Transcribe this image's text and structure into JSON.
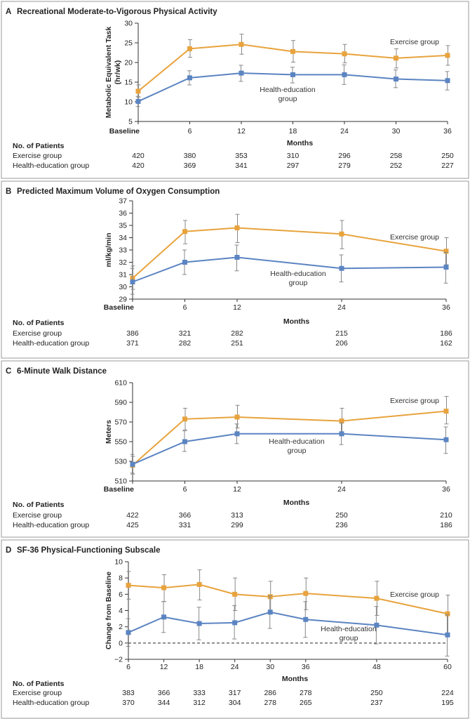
{
  "colors": {
    "exercise": "#E8A33D",
    "health": "#5B84C2",
    "errorbar": "#888888",
    "border": "#9a9a9a"
  },
  "common": {
    "xlabel": "Months",
    "patients_heading": "No. of Patients",
    "exercise_row_label": "Exercise group",
    "health_row_label": "Health-education group"
  },
  "chart_data": [
    {
      "panel": "A",
      "type": "line",
      "title": "Recreational Moderate-to-Vigorous Physical Activity",
      "ylabel": "Metabolic Equivalent Task (hr/wk)",
      "xlabel": "Months",
      "ylim": [
        5,
        30
      ],
      "yticks": [
        5,
        10,
        15,
        20,
        25,
        30
      ],
      "xlim": [
        0,
        36
      ],
      "x": [
        0,
        6,
        12,
        18,
        24,
        30,
        36
      ],
      "xtick_labels": [
        "Baseline",
        "6",
        "12",
        "18",
        "24",
        "30",
        "36"
      ],
      "zero_line": false,
      "series": [
        {
          "name": "Exercise group",
          "values": [
            12.7,
            23.5,
            24.6,
            22.8,
            22.2,
            21.1,
            21.8
          ],
          "err_low": [
            11.2,
            21.3,
            22.1,
            20.1,
            19.9,
            18.6,
            19.3
          ],
          "err_high": [
            14.3,
            25.8,
            27.2,
            25.6,
            24.6,
            23.5,
            24.3
          ]
        },
        {
          "name": "Health-education group",
          "values": [
            10.1,
            16.1,
            17.3,
            16.9,
            16.9,
            15.8,
            15.4
          ],
          "err_low": [
            8.8,
            14.3,
            15.2,
            14.8,
            14.4,
            13.6,
            13.0
          ],
          "err_high": [
            11.4,
            17.9,
            19.3,
            18.8,
            19.4,
            18.1,
            17.7
          ]
        }
      ],
      "patients": {
        "exercise": [
          420,
          380,
          353,
          310,
          296,
          258,
          250
        ],
        "health": [
          420,
          369,
          341,
          297,
          279,
          252,
          227
        ]
      }
    },
    {
      "panel": "B",
      "type": "line",
      "title": "Predicted Maximum Volume of Oxygen Consumption",
      "ylabel": "ml/kg/min",
      "xlabel": "Months",
      "ylim": [
        29,
        37
      ],
      "yticks": [
        29,
        30,
        31,
        32,
        33,
        34,
        35,
        36,
        37
      ],
      "xlim": [
        0,
        36
      ],
      "x": [
        0,
        6,
        12,
        24,
        36
      ],
      "xtick_labels": [
        "Baseline",
        "6",
        "12",
        "24",
        "36"
      ],
      "zero_line": false,
      "series": [
        {
          "name": "Exercise group",
          "values": [
            30.7,
            34.5,
            34.8,
            34.3,
            32.9
          ],
          "err_low": [
            29.8,
            33.5,
            33.6,
            33.1,
            31.8
          ],
          "err_high": [
            31.7,
            35.4,
            35.9,
            35.4,
            34.0
          ]
        },
        {
          "name": "Health-education group",
          "values": [
            30.4,
            32.0,
            32.4,
            31.5,
            31.6
          ],
          "err_low": [
            29.4,
            31.0,
            31.3,
            30.4,
            30.3
          ],
          "err_high": [
            31.5,
            33.0,
            33.4,
            32.6,
            32.8
          ]
        }
      ],
      "patients": {
        "exercise": [
          386,
          321,
          282,
          215,
          186
        ],
        "health": [
          371,
          282,
          251,
          206,
          162
        ]
      }
    },
    {
      "panel": "C",
      "type": "line",
      "title": "6-Minute Walk Distance",
      "ylabel": "Meters",
      "xlabel": "Months",
      "ylim": [
        510,
        610
      ],
      "yticks": [
        510,
        530,
        550,
        570,
        590,
        610
      ],
      "xlim": [
        0,
        36
      ],
      "x": [
        0,
        6,
        12,
        24,
        36
      ],
      "xtick_labels": [
        "Baseline",
        "6",
        "12",
        "24",
        "36"
      ],
      "zero_line": false,
      "series": [
        {
          "name": "Exercise group",
          "values": [
            526,
            573,
            575,
            571,
            581
          ],
          "err_low": [
            517,
            562,
            564,
            559,
            568
          ],
          "err_high": [
            535,
            584,
            587,
            584,
            596
          ]
        },
        {
          "name": "Health-education group",
          "values": [
            527,
            550,
            558,
            558,
            552
          ],
          "err_low": [
            518,
            540,
            548,
            547,
            538
          ],
          "err_high": [
            537,
            561,
            568,
            569,
            565
          ]
        }
      ],
      "patients": {
        "exercise": [
          422,
          366,
          313,
          250,
          210
        ],
        "health": [
          425,
          331,
          299,
          236,
          186
        ]
      }
    },
    {
      "panel": "D",
      "type": "line",
      "title": "SF-36 Physical-Functioning Subscale",
      "ylabel": "Change from Baseline",
      "xlabel": "Months",
      "ylim": [
        -2,
        10
      ],
      "yticks": [
        -2,
        0,
        2,
        4,
        6,
        8,
        10
      ],
      "xlim": [
        6,
        60
      ],
      "x": [
        6,
        12,
        18,
        24,
        30,
        36,
        48,
        60
      ],
      "xtick_labels": [
        "6",
        "12",
        "18",
        "24",
        "30",
        "36",
        "48",
        "60"
      ],
      "zero_line": true,
      "series": [
        {
          "name": "Exercise group",
          "values": [
            7.1,
            6.8,
            7.2,
            6.0,
            5.7,
            6.1,
            5.5,
            3.6
          ],
          "err_low": [
            5.4,
            5.1,
            5.3,
            4.0,
            3.8,
            4.1,
            3.4,
            1.2
          ],
          "err_high": [
            8.8,
            8.4,
            9.0,
            8.0,
            7.6,
            8.0,
            7.6,
            5.9
          ]
        },
        {
          "name": "Health-education group",
          "values": [
            1.3,
            3.2,
            2.4,
            2.5,
            3.8,
            2.9,
            2.2,
            1.0
          ],
          "err_low": [
            -0.4,
            1.3,
            0.4,
            0.5,
            1.8,
            0.7,
            -0.1,
            -1.6
          ],
          "err_high": [
            3.0,
            5.1,
            4.4,
            4.6,
            5.8,
            5.1,
            4.5,
            3.5
          ]
        }
      ],
      "patients": {
        "exercise": [
          383,
          366,
          333,
          317,
          286,
          278,
          250,
          224
        ],
        "health": [
          370,
          344,
          312,
          304,
          278,
          265,
          237,
          195
        ]
      }
    }
  ]
}
